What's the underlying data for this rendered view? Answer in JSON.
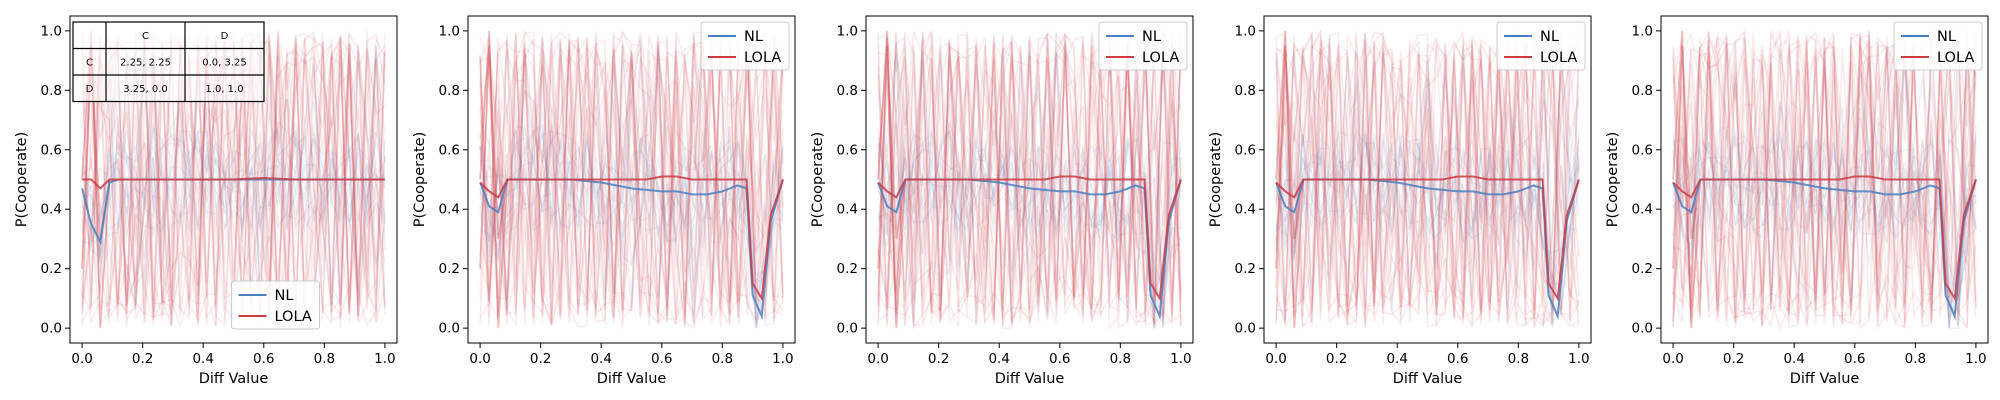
{
  "chart_data": {
    "type": "line",
    "x_ticks": [
      "0.0",
      "0.2",
      "0.4",
      "0.6",
      "0.8",
      "1.0"
    ],
    "y_ticks": [
      "0.0",
      "0.2",
      "0.4",
      "0.6",
      "0.8",
      "1.0"
    ],
    "colors": {
      "NL": "#4a7fbf",
      "LOLA": "#cd3b43"
    },
    "panels": [
      {
        "xlabel": "Diff Value",
        "ylabel": "P(Cooperate)",
        "xlim": [
          -0.04,
          1.04
        ],
        "ylim": [
          -0.05,
          1.05
        ],
        "legend": {
          "position": "lower-center",
          "entries": [
            "NL",
            "LOLA"
          ]
        },
        "table": {
          "header": [
            "",
            "C",
            "D"
          ],
          "rows": [
            [
              "C",
              "2.25, 2.25",
              "0.0, 3.25"
            ],
            [
              "D",
              "3.25, 0.0",
              "1.0, 1.0"
            ]
          ]
        },
        "series": [
          {
            "name": "NL",
            "x": [
              0.0,
              0.03,
              0.06,
              0.09,
              0.12,
              0.2,
              0.3,
              0.4,
              0.5,
              0.6,
              0.7,
              0.8,
              0.9,
              1.0
            ],
            "values": [
              0.47,
              0.35,
              0.29,
              0.49,
              0.5,
              0.5,
              0.5,
              0.5,
              0.5,
              0.5,
              0.5,
              0.5,
              0.5,
              0.5
            ]
          },
          {
            "name": "LOLA",
            "x": [
              0.0,
              0.03,
              0.06,
              0.09,
              0.12,
              0.2,
              0.3,
              0.4,
              0.5,
              0.6,
              0.7,
              0.8,
              0.9,
              1.0
            ],
            "values": [
              0.5,
              0.5,
              0.47,
              0.5,
              0.5,
              0.5,
              0.5,
              0.5,
              0.5,
              0.505,
              0.5,
              0.5,
              0.5,
              0.5
            ]
          }
        ]
      },
      {
        "xlabel": "Diff Value",
        "ylabel": "P(Cooperate)",
        "xlim": [
          -0.04,
          1.04
        ],
        "ylim": [
          -0.05,
          1.05
        ],
        "legend": {
          "position": "top-right",
          "entries": [
            "NL",
            "LOLA"
          ]
        },
        "series": [
          {
            "name": "NL",
            "x": [
              0.0,
              0.03,
              0.06,
              0.09,
              0.2,
              0.3,
              0.4,
              0.5,
              0.6,
              0.65,
              0.7,
              0.75,
              0.8,
              0.85,
              0.88,
              0.9,
              0.93,
              0.96,
              1.0
            ],
            "values": [
              0.49,
              0.41,
              0.39,
              0.5,
              0.5,
              0.5,
              0.49,
              0.47,
              0.46,
              0.46,
              0.45,
              0.45,
              0.46,
              0.48,
              0.47,
              0.11,
              0.04,
              0.36,
              0.5
            ]
          },
          {
            "name": "LOLA",
            "x": [
              0.0,
              0.03,
              0.06,
              0.09,
              0.2,
              0.3,
              0.4,
              0.5,
              0.55,
              0.6,
              0.65,
              0.7,
              0.75,
              0.8,
              0.85,
              0.88,
              0.9,
              0.93,
              0.96,
              1.0
            ],
            "values": [
              0.49,
              0.46,
              0.44,
              0.5,
              0.5,
              0.5,
              0.5,
              0.5,
              0.5,
              0.51,
              0.51,
              0.5,
              0.5,
              0.5,
              0.5,
              0.5,
              0.15,
              0.1,
              0.38,
              0.5
            ]
          }
        ]
      },
      {
        "xlabel": "Diff Value",
        "ylabel": "P(Cooperate)",
        "xlim": [
          -0.04,
          1.04
        ],
        "ylim": [
          -0.05,
          1.05
        ],
        "legend": {
          "position": "top-right",
          "entries": [
            "NL",
            "LOLA"
          ]
        },
        "series": [
          {
            "name": "NL",
            "x": [
              0.0,
              0.03,
              0.06,
              0.09,
              0.2,
              0.3,
              0.4,
              0.5,
              0.6,
              0.65,
              0.7,
              0.75,
              0.8,
              0.85,
              0.88,
              0.9,
              0.93,
              0.96,
              1.0
            ],
            "values": [
              0.49,
              0.41,
              0.39,
              0.5,
              0.5,
              0.5,
              0.49,
              0.47,
              0.46,
              0.46,
              0.45,
              0.45,
              0.46,
              0.48,
              0.47,
              0.11,
              0.04,
              0.36,
              0.5
            ]
          },
          {
            "name": "LOLA",
            "x": [
              0.0,
              0.03,
              0.06,
              0.09,
              0.2,
              0.3,
              0.4,
              0.5,
              0.55,
              0.6,
              0.65,
              0.7,
              0.75,
              0.8,
              0.85,
              0.88,
              0.9,
              0.93,
              0.96,
              1.0
            ],
            "values": [
              0.49,
              0.46,
              0.44,
              0.5,
              0.5,
              0.5,
              0.5,
              0.5,
              0.5,
              0.51,
              0.51,
              0.5,
              0.5,
              0.5,
              0.5,
              0.5,
              0.15,
              0.1,
              0.38,
              0.5
            ]
          }
        ]
      },
      {
        "xlabel": "Diff Value",
        "ylabel": "P(Cooperate)",
        "xlim": [
          -0.04,
          1.04
        ],
        "ylim": [
          -0.05,
          1.05
        ],
        "legend": {
          "position": "top-right",
          "entries": [
            "NL",
            "LOLA"
          ]
        },
        "series": [
          {
            "name": "NL",
            "x": [
              0.0,
              0.03,
              0.06,
              0.09,
              0.2,
              0.3,
              0.4,
              0.5,
              0.6,
              0.65,
              0.7,
              0.75,
              0.8,
              0.85,
              0.88,
              0.9,
              0.93,
              0.96,
              1.0
            ],
            "values": [
              0.49,
              0.41,
              0.39,
              0.5,
              0.5,
              0.5,
              0.49,
              0.47,
              0.46,
              0.46,
              0.45,
              0.45,
              0.46,
              0.48,
              0.47,
              0.11,
              0.04,
              0.36,
              0.5
            ]
          },
          {
            "name": "LOLA",
            "x": [
              0.0,
              0.03,
              0.06,
              0.09,
              0.2,
              0.3,
              0.4,
              0.5,
              0.55,
              0.6,
              0.65,
              0.7,
              0.75,
              0.8,
              0.85,
              0.88,
              0.9,
              0.93,
              0.96,
              1.0
            ],
            "values": [
              0.49,
              0.46,
              0.44,
              0.5,
              0.5,
              0.5,
              0.5,
              0.5,
              0.5,
              0.51,
              0.51,
              0.5,
              0.5,
              0.5,
              0.5,
              0.5,
              0.15,
              0.1,
              0.38,
              0.5
            ]
          }
        ]
      },
      {
        "xlabel": "Diff Value",
        "ylabel": "P(Cooperate)",
        "xlim": [
          -0.04,
          1.04
        ],
        "ylim": [
          -0.05,
          1.05
        ],
        "legend": {
          "position": "top-right",
          "entries": [
            "NL",
            "LOLA"
          ]
        },
        "series": [
          {
            "name": "NL",
            "x": [
              0.0,
              0.03,
              0.06,
              0.09,
              0.2,
              0.3,
              0.4,
              0.5,
              0.6,
              0.65,
              0.7,
              0.75,
              0.8,
              0.85,
              0.88,
              0.9,
              0.93,
              0.96,
              1.0
            ],
            "values": [
              0.49,
              0.41,
              0.39,
              0.5,
              0.5,
              0.5,
              0.49,
              0.47,
              0.46,
              0.46,
              0.45,
              0.45,
              0.46,
              0.48,
              0.47,
              0.11,
              0.04,
              0.36,
              0.5
            ]
          },
          {
            "name": "LOLA",
            "x": [
              0.0,
              0.03,
              0.06,
              0.09,
              0.2,
              0.3,
              0.4,
              0.5,
              0.55,
              0.6,
              0.65,
              0.7,
              0.75,
              0.8,
              0.85,
              0.88,
              0.9,
              0.93,
              0.96,
              1.0
            ],
            "values": [
              0.49,
              0.46,
              0.44,
              0.5,
              0.5,
              0.5,
              0.5,
              0.5,
              0.5,
              0.51,
              0.51,
              0.5,
              0.5,
              0.5,
              0.5,
              0.5,
              0.15,
              0.1,
              0.38,
              0.5
            ]
          }
        ]
      }
    ]
  }
}
